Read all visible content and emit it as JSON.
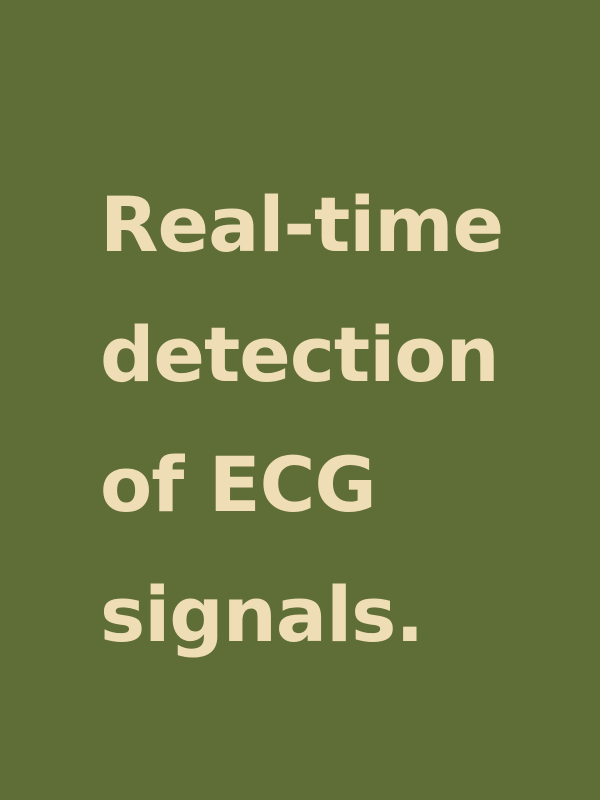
{
  "colors": {
    "background": "#5f6d37",
    "text": "#efdeb5"
  },
  "headline": {
    "lines": [
      "Real-time",
      "detection",
      "of ECG",
      "signals."
    ]
  }
}
